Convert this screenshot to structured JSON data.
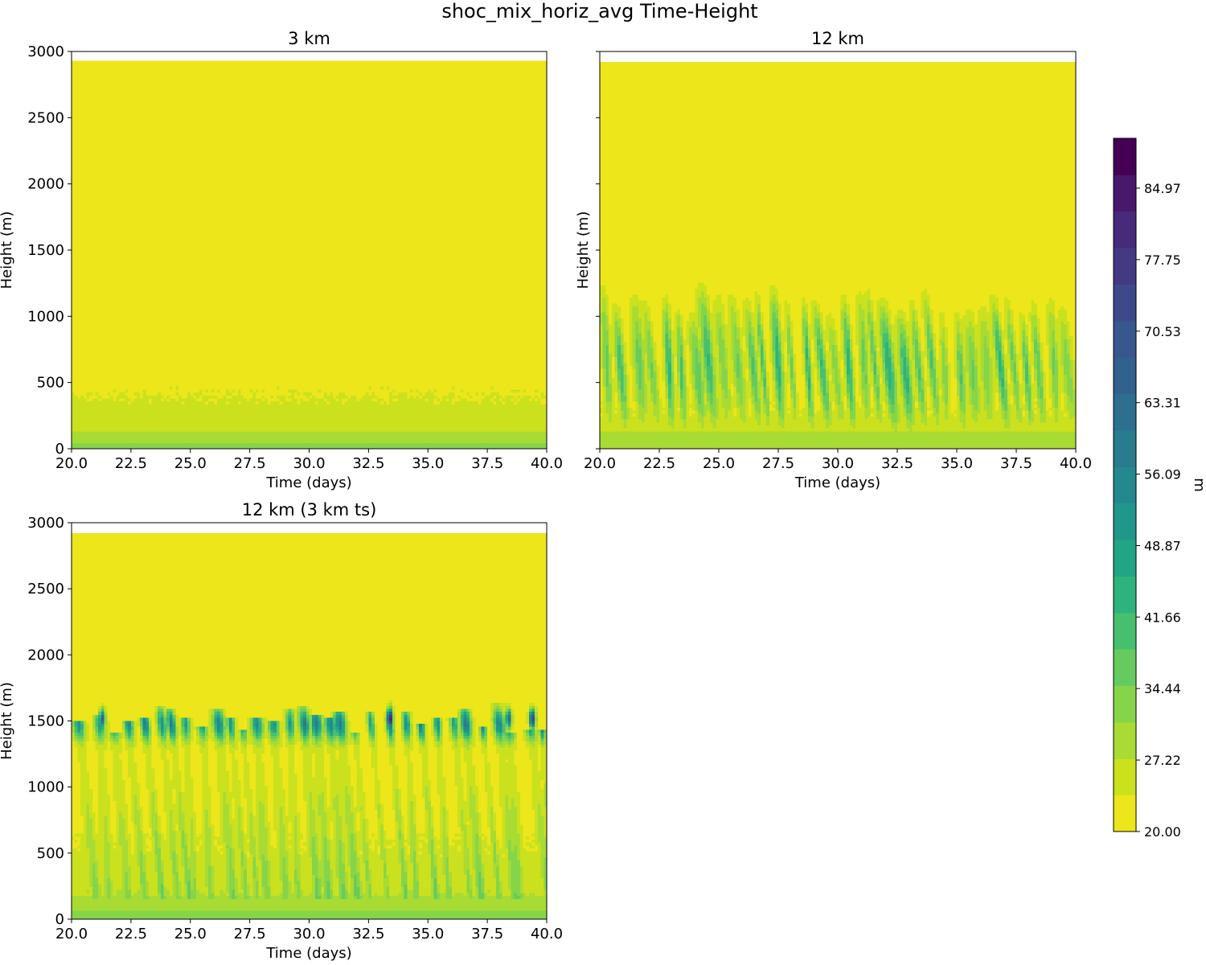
{
  "title": "shoc_mix_horiz_avg Time-Height",
  "colors": {
    "levels": [
      "#ece61b",
      "#cbe11e",
      "#a8db34",
      "#86d549",
      "#65cb5e",
      "#46c06f",
      "#2eb37c",
      "#21a585",
      "#1f978b",
      "#23898e",
      "#287c8e",
      "#2c6f8e",
      "#31618d",
      "#38578c",
      "#3e4989",
      "#443983",
      "#472a7a",
      "#48186a",
      "#440154"
    ],
    "frame": "#000000"
  },
  "chart_data": [
    {
      "type": "heatmap",
      "title": "3 km",
      "xlabel": "Time (days)",
      "ylabel": "Height (m)",
      "xlim": [
        20,
        40
      ],
      "ylim": [
        0,
        3000
      ],
      "data_top": 2930,
      "xticks": [
        "20.0",
        "22.5",
        "25.0",
        "27.5",
        "30.0",
        "32.5",
        "35.0",
        "37.5",
        "40.0"
      ],
      "yticks": [
        "0",
        "500",
        "1000",
        "1500",
        "2000",
        "2500",
        "3000"
      ],
      "show_ytick_labels": true,
      "profile": [
        {
          "h": 0,
          "v": 31
        },
        {
          "h": 25,
          "v": 33
        },
        {
          "h": 60,
          "v": 30
        },
        {
          "h": 110,
          "v": 28
        },
        {
          "h": 180,
          "v": 25
        },
        {
          "h": 300,
          "v": 24.5
        },
        {
          "h": 480,
          "v": 23
        },
        {
          "h": 620,
          "v": 20
        }
      ],
      "streaks": [],
      "patches_seed": 3,
      "patches_count": 34,
      "patches_hrange": [
        950,
        1350
      ],
      "patches_value": 23
    },
    {
      "type": "heatmap",
      "title": "12 km",
      "xlabel": "Time (days)",
      "ylabel": "Height (m)",
      "xlim": [
        20,
        40
      ],
      "ylim": [
        0,
        3000
      ],
      "data_top": 2920,
      "xticks": [
        "20.0",
        "22.5",
        "25.0",
        "27.5",
        "30.0",
        "32.5",
        "35.0",
        "37.5",
        "40.0"
      ],
      "yticks": [
        "0",
        "500",
        "1000",
        "1500",
        "2000",
        "2500",
        "3000"
      ],
      "show_ytick_labels": false,
      "profile": [
        {
          "h": 0,
          "v": 31
        },
        {
          "h": 20,
          "v": 31
        },
        {
          "h": 120,
          "v": 28
        },
        {
          "h": 250,
          "v": 24
        },
        {
          "h": 500,
          "v": 22
        },
        {
          "h": 900,
          "v": 21.5
        },
        {
          "h": 1250,
          "v": 21
        },
        {
          "h": 1350,
          "v": 20
        }
      ],
      "streaks": [
        20.3,
        20.9,
        21.6,
        22.2,
        22.9,
        23.4,
        24.0,
        24.6,
        25.2,
        25.7,
        26.4,
        26.9,
        27.5,
        28.1,
        28.7,
        29.2,
        29.8,
        30.4,
        31.1,
        31.6,
        32.2,
        32.8,
        33.3,
        33.9,
        34.5,
        35.1,
        35.6,
        36.2,
        36.8,
        37.4,
        37.9,
        38.5,
        39.1,
        39.7
      ],
      "streak_seed": 12,
      "streak_hrange": [
        60,
        1300
      ],
      "streak_peak_range": [
        34,
        46
      ],
      "patches_seed": 0,
      "patches_count": 0,
      "patches_hrange": [
        0,
        0
      ],
      "patches_value": 20
    },
    {
      "type": "heatmap",
      "title": "12 km (3 km ts)",
      "xlabel": "Time (days)",
      "ylabel": "Height (m)",
      "xlim": [
        20,
        40
      ],
      "ylim": [
        0,
        3000
      ],
      "data_top": 2920,
      "xticks": [
        "20.0",
        "22.5",
        "25.0",
        "27.5",
        "30.0",
        "32.5",
        "35.0",
        "37.5",
        "40.0"
      ],
      "yticks": [
        "0",
        "500",
        "1000",
        "1500",
        "2000",
        "2500",
        "3000"
      ],
      "show_ytick_labels": true,
      "profile": [
        {
          "h": 0,
          "v": 31
        },
        {
          "h": 30,
          "v": 33
        },
        {
          "h": 70,
          "v": 31
        },
        {
          "h": 200,
          "v": 27
        },
        {
          "h": 500,
          "v": 24
        },
        {
          "h": 1000,
          "v": 22
        },
        {
          "h": 1550,
          "v": 21.5
        },
        {
          "h": 1700,
          "v": 20
        }
      ],
      "streaks": [
        20.3,
        21.2,
        21.8,
        22.4,
        23.1,
        23.8,
        24.2,
        24.8,
        25.5,
        26.2,
        26.7,
        27.2,
        27.8,
        28.5,
        29.2,
        29.8,
        30.3,
        30.9,
        31.3,
        31.9,
        32.6,
        33.4,
        34.1,
        34.7,
        35.4,
        36.1,
        36.6,
        37.3,
        38.0,
        38.4,
        39.3,
        39.8
      ],
      "streak_seed": 7,
      "streak_hrange": [
        150,
        1650
      ],
      "streak_center": 1480,
      "streak_peak_range": [
        48,
        62
      ],
      "hot_spots": [
        {
          "t": 33.4,
          "v": 88
        },
        {
          "t": 39.4,
          "v": 80
        },
        {
          "t": 21.3,
          "v": 66
        },
        {
          "t": 38.4,
          "v": 66
        }
      ],
      "patches_seed": 0,
      "patches_count": 0,
      "patches_hrange": [
        0,
        0
      ],
      "patches_value": 20
    }
  ],
  "colorbar": {
    "label": "m",
    "vmin": 20.0,
    "vmax": 90.0,
    "ticks": [
      "20.00",
      "27.22",
      "34.44",
      "41.66",
      "48.87",
      "56.09",
      "63.31",
      "70.53",
      "77.75",
      "84.97"
    ]
  }
}
